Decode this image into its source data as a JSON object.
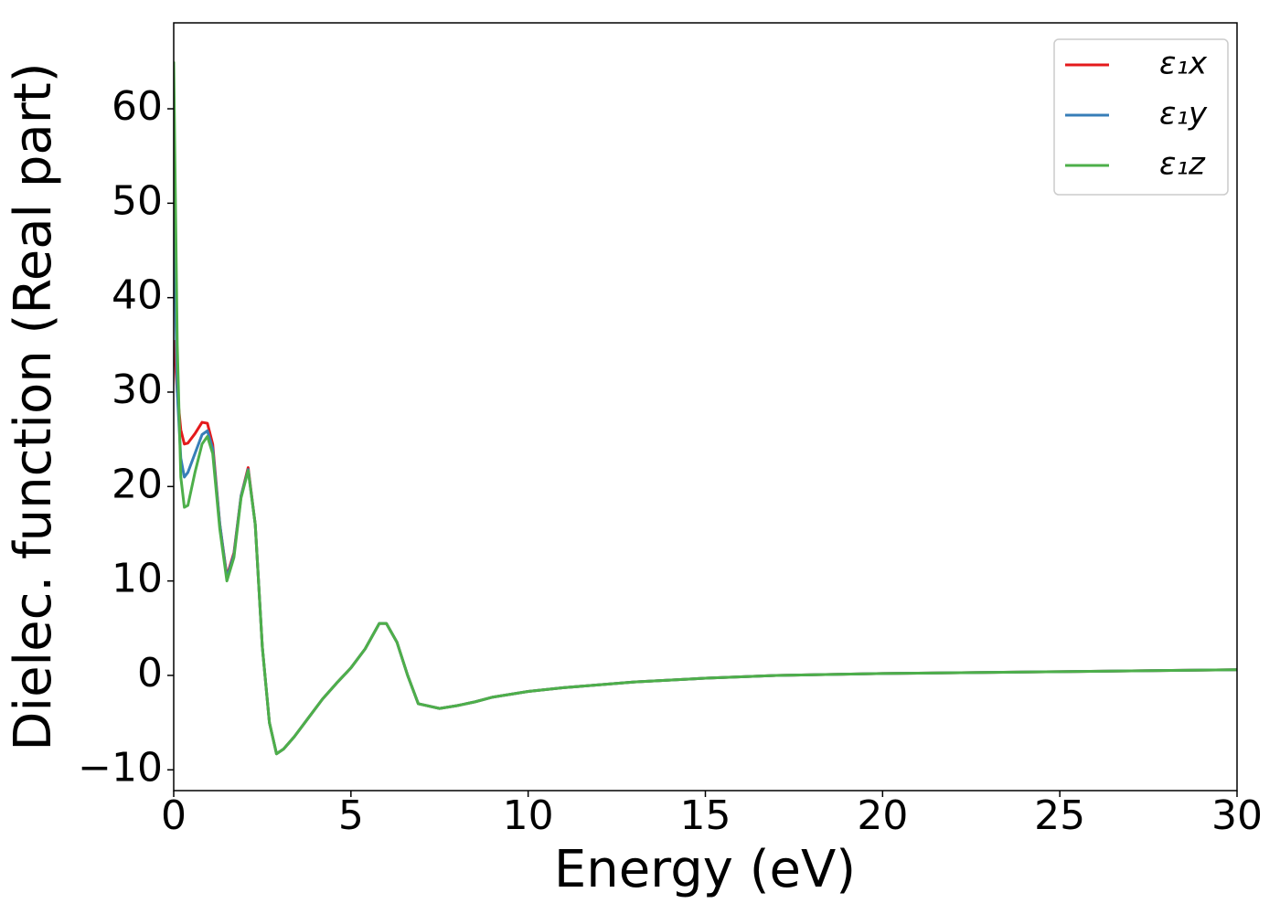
{
  "chart_data": {
    "type": "line",
    "xlabel": "Energy (eV)",
    "ylabel": "Dielec. function (Real part)",
    "x": [
      0,
      0.05,
      0.1,
      0.2,
      0.3,
      0.4,
      0.6,
      0.8,
      0.95,
      1.1,
      1.3,
      1.5,
      1.7,
      1.9,
      2.1,
      2.3,
      2.5,
      2.7,
      2.9,
      3.1,
      3.4,
      3.8,
      4.2,
      4.6,
      5.0,
      5.4,
      5.8,
      6.0,
      6.3,
      6.6,
      6.9,
      7.5,
      8.0,
      8.5,
      9.0,
      9.5,
      10,
      11,
      12,
      13,
      15,
      17,
      20,
      25,
      30
    ],
    "series": [
      {
        "name": "ε₁x",
        "color": "#e41a1c",
        "values": [
          35.5,
          33,
          30,
          26,
          24.5,
          24.6,
          25.6,
          26.8,
          26.7,
          24.5,
          16,
          10.5,
          13,
          19,
          22,
          16,
          3,
          -5,
          -8.3,
          -7.8,
          -6.5,
          -4.5,
          -2.5,
          -0.8,
          0.8,
          2.8,
          5.5,
          5.5,
          3.5,
          0,
          -3,
          -3.5,
          -3.2,
          -2.8,
          -2.3,
          -2,
          -1.7,
          -1.3,
          -1.0,
          -0.7,
          -0.3,
          0,
          0.2,
          0.4,
          0.6
        ]
      },
      {
        "name": "ε₁y",
        "color": "#377eb8",
        "values": [
          50,
          40,
          30,
          23,
          21,
          21.5,
          23.5,
          25.5,
          25.9,
          24,
          16,
          10.3,
          12.8,
          19,
          21.8,
          16,
          3,
          -5,
          -8.3,
          -7.8,
          -6.5,
          -4.5,
          -2.5,
          -0.8,
          0.8,
          2.8,
          5.5,
          5.5,
          3.5,
          0,
          -3,
          -3.5,
          -3.2,
          -2.8,
          -2.3,
          -2,
          -1.7,
          -1.3,
          -1.0,
          -0.7,
          -0.3,
          0,
          0.2,
          0.4,
          0.6
        ]
      },
      {
        "name": "ε₁z",
        "color": "#4daf4a",
        "values": [
          65,
          50,
          35,
          21,
          17.8,
          18,
          21.5,
          24.5,
          25.3,
          23.5,
          15.5,
          10,
          12.5,
          18.8,
          21.7,
          16,
          3,
          -5,
          -8.3,
          -7.8,
          -6.5,
          -4.5,
          -2.5,
          -0.8,
          0.8,
          2.8,
          5.5,
          5.5,
          3.5,
          0,
          -3,
          -3.5,
          -3.2,
          -2.8,
          -2.3,
          -2,
          -1.7,
          -1.3,
          -1.0,
          -0.7,
          -0.3,
          0,
          0.2,
          0.4,
          0.6
        ]
      }
    ],
    "xlim": [
      0,
      30
    ],
    "xticks": [
      0,
      5,
      10,
      15,
      20,
      25,
      30
    ],
    "ylim": [
      -12.2,
      69.1
    ],
    "yticks": [
      {
        "value": -10,
        "label": "−10"
      },
      0,
      10,
      20,
      30,
      40,
      50,
      60
    ],
    "legend": "upper right"
  }
}
